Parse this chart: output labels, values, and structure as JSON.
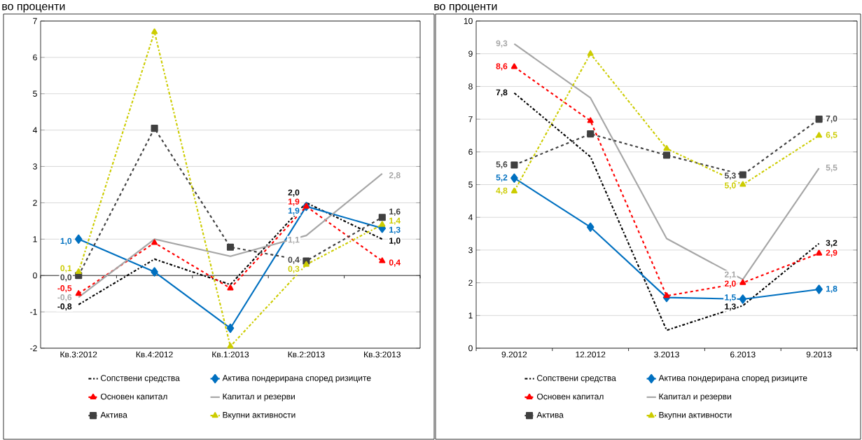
{
  "chart_data": [
    {
      "type": "line",
      "ylabel": "во проценти",
      "categories": [
        "Кв.3:2012",
        "Кв.4:2012",
        "Кв.1:2013",
        "Кв.2:2013",
        "Кв.3:2013"
      ],
      "ylim": [
        -2,
        7
      ],
      "yticks": [
        -2,
        -1,
        0,
        1,
        2,
        3,
        4,
        5,
        6,
        7
      ],
      "grid": "y",
      "legend": "bottom",
      "series": [
        {
          "name": "Сопствени средства",
          "color": "#000000",
          "marker": "none",
          "line_style": "dashdot",
          "values": [
            -0.8,
            0.45,
            -0.25,
            2.0,
            1.0
          ],
          "value_labels": [
            "-0,8",
            null,
            null,
            "2,0",
            "1,0"
          ]
        },
        {
          "name": "Актива пондерирана според ризиците",
          "color": "#0070C0",
          "marker": "diamond",
          "line_style": "solid",
          "values": [
            1.0,
            0.1,
            -1.45,
            1.9,
            1.3
          ],
          "value_labels": [
            "1,0",
            null,
            null,
            "1,9",
            "1,3"
          ]
        },
        {
          "name": "Основен капитал",
          "color": "#FF0000",
          "marker": "triangle",
          "line_style": "dashed",
          "values": [
            -0.5,
            0.9,
            -0.35,
            1.9,
            0.4
          ],
          "value_labels": [
            "-0,5",
            null,
            null,
            "1,9",
            "0,4"
          ]
        },
        {
          "name": "Капитал и резерви",
          "color": "#A6A6A6",
          "marker": "none",
          "line_style": "solid",
          "values": [
            -0.6,
            1.0,
            0.53,
            1.1,
            2.8
          ],
          "value_labels": [
            "-0,6",
            null,
            null,
            "1,1",
            "2,8"
          ]
        },
        {
          "name": "Актива",
          "color": "#404040",
          "marker": "square",
          "line_style": "dashed",
          "values": [
            0.0,
            4.05,
            0.78,
            0.4,
            1.6
          ],
          "value_labels": [
            "0,0",
            null,
            null,
            "0,4",
            "1,6"
          ]
        },
        {
          "name": "Вкупни активности",
          "color": "#CCCC00",
          "marker": "triangle",
          "line_style": "dashdot",
          "values": [
            0.1,
            6.7,
            -1.95,
            0.3,
            1.4
          ],
          "value_labels": [
            "0,1",
            null,
            null,
            "0,3",
            "1,4"
          ]
        }
      ]
    },
    {
      "type": "line",
      "ylabel": "во проценти",
      "categories": [
        "9.2012",
        "12.2012",
        "3.2013",
        "6.2013",
        "9.2013"
      ],
      "ylim": [
        0,
        10
      ],
      "yticks": [
        0,
        1,
        2,
        3,
        4,
        5,
        6,
        7,
        8,
        9,
        10
      ],
      "grid": "y",
      "legend": "bottom",
      "series": [
        {
          "name": "Сопствени средства",
          "color": "#000000",
          "marker": "none",
          "line_style": "dashdot",
          "values": [
            7.8,
            5.85,
            0.55,
            1.3,
            3.2
          ],
          "value_labels": [
            "7,8",
            null,
            null,
            "1,3",
            "3,2"
          ]
        },
        {
          "name": "Актива пондерирана според ризиците",
          "color": "#0070C0",
          "marker": "diamond",
          "line_style": "solid",
          "values": [
            5.2,
            3.7,
            1.55,
            1.5,
            1.8
          ],
          "value_labels": [
            "5,2",
            null,
            null,
            "1,5",
            "1,8"
          ]
        },
        {
          "name": "Основен капитал",
          "color": "#FF0000",
          "marker": "triangle",
          "line_style": "dashed",
          "values": [
            8.6,
            6.95,
            1.6,
            2.0,
            2.9
          ],
          "value_labels": [
            "8,6",
            null,
            null,
            "2,0",
            "2,9"
          ]
        },
        {
          "name": "Капитал и резерви",
          "color": "#A6A6A6",
          "marker": "none",
          "line_style": "solid",
          "values": [
            9.3,
            7.65,
            3.35,
            2.1,
            5.5
          ],
          "value_labels": [
            "9,3",
            null,
            null,
            "2,1",
            "5,5"
          ]
        },
        {
          "name": "Актива",
          "color": "#404040",
          "marker": "square",
          "line_style": "dashed",
          "values": [
            5.6,
            6.55,
            5.9,
            5.3,
            7.0
          ],
          "value_labels": [
            "5,6",
            null,
            null,
            "5,3",
            "7,0"
          ]
        },
        {
          "name": "Вкупни активности",
          "color": "#CCCC00",
          "marker": "triangle",
          "line_style": "dashdot",
          "values": [
            4.8,
            9.0,
            6.1,
            5.0,
            6.5
          ],
          "value_labels": [
            "4,8",
            null,
            null,
            "5,0",
            "6,5"
          ]
        }
      ]
    }
  ]
}
